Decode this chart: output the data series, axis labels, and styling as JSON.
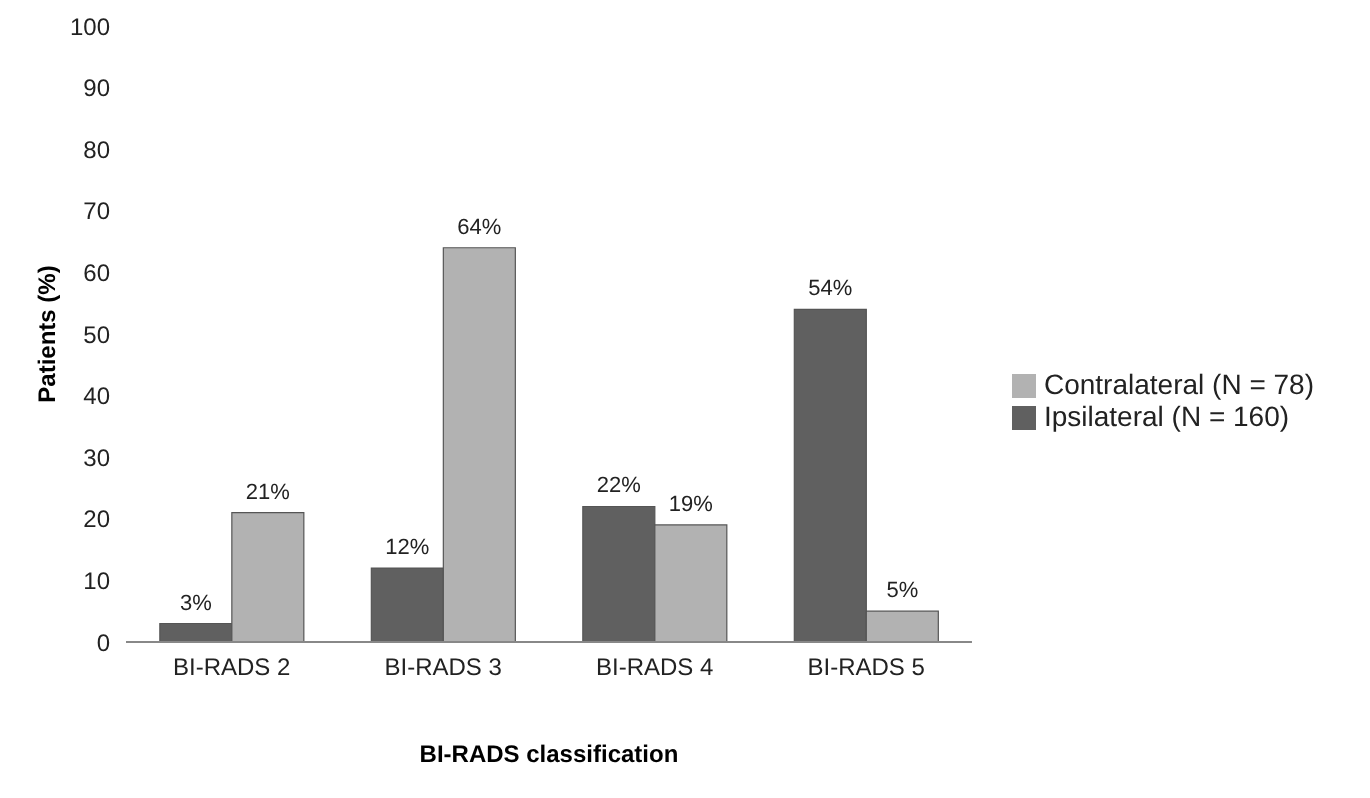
{
  "chart_data": {
    "type": "bar",
    "xlabel": "BI-RADS classification",
    "ylabel": "Patients (%)",
    "categories": [
      "BI-RADS 2",
      "BI-RADS 3",
      "BI-RADS 4",
      "BI-RADS 5"
    ],
    "series": [
      {
        "name": "Ipsilateral (N = 160)",
        "color": "#606060",
        "values": [
          3,
          12,
          22,
          54
        ],
        "value_labels": [
          "3%",
          "12%",
          "22%",
          "54%"
        ]
      },
      {
        "name": "Contralateral (N = 78)",
        "color": "#b2b2b2",
        "values": [
          21,
          64,
          19,
          5
        ],
        "value_labels": [
          "21%",
          "64%",
          "19%",
          "5%"
        ]
      }
    ],
    "ylim": [
      0,
      100
    ],
    "yticks": [
      0,
      10,
      20,
      30,
      40,
      50,
      60,
      70,
      80,
      90,
      100
    ],
    "grid": false,
    "legend": "right"
  }
}
